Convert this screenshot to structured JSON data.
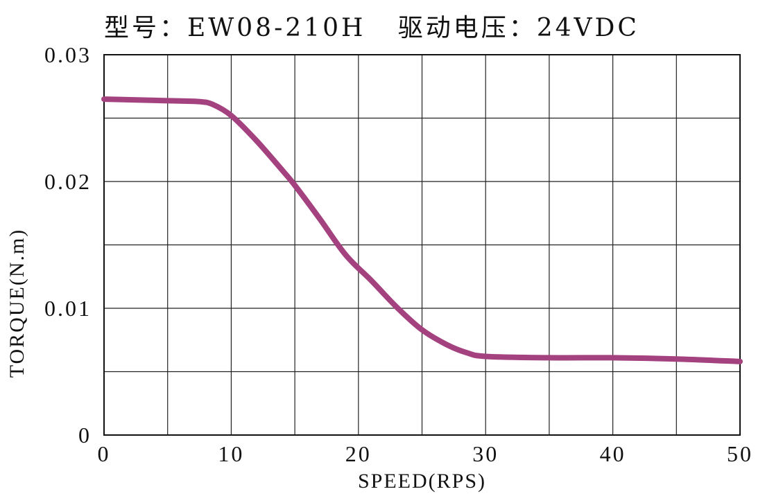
{
  "chart_data": {
    "type": "line",
    "title": "型号：EW08-210H   驱动电压：24VDC",
    "xlabel": "SPEED(RPS)",
    "ylabel": "TORQUE(N.m)",
    "xlim": [
      0,
      50
    ],
    "ylim": [
      0,
      0.03
    ],
    "x_ticks": [
      0,
      10,
      20,
      30,
      40,
      50
    ],
    "x_tick_labels": [
      "0",
      "10",
      "20",
      "30",
      "40",
      "50"
    ],
    "y_ticks": [
      0,
      0.01,
      0.02,
      0.03
    ],
    "y_tick_labels": [
      "0",
      "0.01",
      "0.02",
      "0.03"
    ],
    "x_grid_step": 5,
    "y_grid_step": 0.005,
    "grid": true,
    "series": [
      {
        "color": "#a4427f",
        "x": [
          0,
          2,
          4,
          6,
          7.5,
          8.5,
          10,
          12,
          14,
          15,
          17,
          19,
          21,
          23,
          25,
          27,
          28.5,
          30,
          35,
          40,
          45,
          50
        ],
        "y": [
          0.0265,
          0.02645,
          0.0264,
          0.02635,
          0.0263,
          0.0261,
          0.0252,
          0.0232,
          0.0209,
          0.0197,
          0.017,
          0.0142,
          0.0122,
          0.0101,
          0.0083,
          0.0071,
          0.0065,
          0.0062,
          0.0061,
          0.0061,
          0.006,
          0.0058
        ]
      }
    ]
  }
}
